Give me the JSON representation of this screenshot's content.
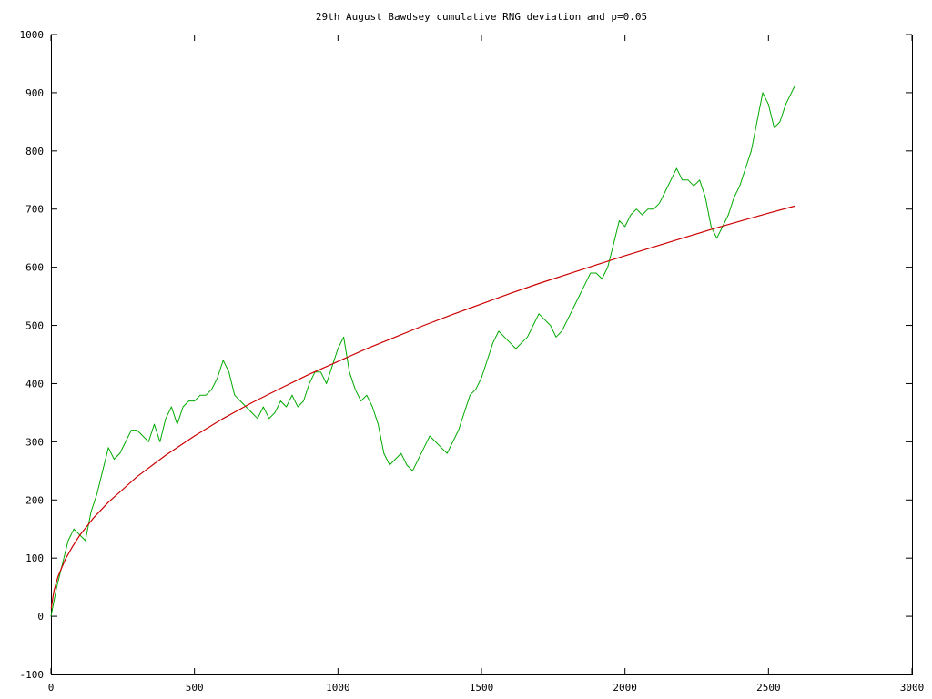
{
  "chart_data": {
    "type": "line",
    "title": "29th August Bawdsey cumulative RNG deviation and p=0.05",
    "xlabel": "",
    "ylabel": "",
    "xlim": [
      0,
      3000
    ],
    "ylim": [
      -100,
      1000
    ],
    "x_ticks": [
      0,
      500,
      1000,
      1500,
      2000,
      2500,
      3000
    ],
    "y_ticks": [
      -100,
      0,
      100,
      200,
      300,
      400,
      500,
      600,
      700,
      800,
      900,
      1000
    ],
    "x_tick_labels": [
      "0",
      "500",
      "1000",
      "1500",
      "2000",
      "2500",
      "3000"
    ],
    "y_tick_labels": [
      "-100",
      "0",
      "100",
      "200",
      "300",
      "400",
      "500",
      "600",
      "700",
      "800",
      "900",
      "1000"
    ],
    "grid": false,
    "legend": "none",
    "series": [
      {
        "color": "#00aa00",
        "points": [
          [
            0,
            0
          ],
          [
            20,
            50
          ],
          [
            40,
            90
          ],
          [
            60,
            130
          ],
          [
            80,
            150
          ],
          [
            100,
            140
          ],
          [
            120,
            130
          ],
          [
            140,
            180
          ],
          [
            160,
            210
          ],
          [
            180,
            250
          ],
          [
            200,
            290
          ],
          [
            220,
            270
          ],
          [
            240,
            280
          ],
          [
            260,
            300
          ],
          [
            280,
            320
          ],
          [
            300,
            320
          ],
          [
            320,
            310
          ],
          [
            340,
            300
          ],
          [
            360,
            330
          ],
          [
            380,
            300
          ],
          [
            400,
            340
          ],
          [
            420,
            360
          ],
          [
            440,
            330
          ],
          [
            460,
            360
          ],
          [
            480,
            370
          ],
          [
            500,
            370
          ],
          [
            520,
            380
          ],
          [
            540,
            380
          ],
          [
            560,
            390
          ],
          [
            580,
            410
          ],
          [
            600,
            440
          ],
          [
            620,
            420
          ],
          [
            640,
            380
          ],
          [
            660,
            370
          ],
          [
            680,
            360
          ],
          [
            700,
            350
          ],
          [
            720,
            340
          ],
          [
            740,
            360
          ],
          [
            760,
            340
          ],
          [
            780,
            350
          ],
          [
            800,
            370
          ],
          [
            820,
            360
          ],
          [
            840,
            380
          ],
          [
            860,
            360
          ],
          [
            880,
            370
          ],
          [
            900,
            400
          ],
          [
            920,
            420
          ],
          [
            940,
            420
          ],
          [
            960,
            400
          ],
          [
            980,
            430
          ],
          [
            1000,
            460
          ],
          [
            1020,
            480
          ],
          [
            1040,
            420
          ],
          [
            1060,
            390
          ],
          [
            1080,
            370
          ],
          [
            1100,
            380
          ],
          [
            1120,
            360
          ],
          [
            1140,
            330
          ],
          [
            1160,
            280
          ],
          [
            1180,
            260
          ],
          [
            1200,
            270
          ],
          [
            1220,
            280
          ],
          [
            1240,
            260
          ],
          [
            1260,
            250
          ],
          [
            1280,
            270
          ],
          [
            1300,
            290
          ],
          [
            1320,
            310
          ],
          [
            1340,
            300
          ],
          [
            1360,
            290
          ],
          [
            1380,
            280
          ],
          [
            1400,
            300
          ],
          [
            1420,
            320
          ],
          [
            1440,
            350
          ],
          [
            1460,
            380
          ],
          [
            1480,
            390
          ],
          [
            1500,
            410
          ],
          [
            1520,
            440
          ],
          [
            1540,
            470
          ],
          [
            1560,
            490
          ],
          [
            1580,
            480
          ],
          [
            1600,
            470
          ],
          [
            1620,
            460
          ],
          [
            1640,
            470
          ],
          [
            1660,
            480
          ],
          [
            1680,
            500
          ],
          [
            1700,
            520
          ],
          [
            1720,
            510
          ],
          [
            1740,
            500
          ],
          [
            1760,
            480
          ],
          [
            1780,
            490
          ],
          [
            1800,
            510
          ],
          [
            1820,
            530
          ],
          [
            1840,
            550
          ],
          [
            1860,
            570
          ],
          [
            1880,
            590
          ],
          [
            1900,
            590
          ],
          [
            1920,
            580
          ],
          [
            1940,
            600
          ],
          [
            1960,
            640
          ],
          [
            1980,
            680
          ],
          [
            2000,
            670
          ],
          [
            2020,
            690
          ],
          [
            2040,
            700
          ],
          [
            2060,
            690
          ],
          [
            2080,
            700
          ],
          [
            2100,
            700
          ],
          [
            2120,
            710
          ],
          [
            2140,
            730
          ],
          [
            2160,
            750
          ],
          [
            2180,
            770
          ],
          [
            2200,
            750
          ],
          [
            2220,
            750
          ],
          [
            2240,
            740
          ],
          [
            2260,
            750
          ],
          [
            2280,
            720
          ],
          [
            2300,
            670
          ],
          [
            2320,
            650
          ],
          [
            2340,
            670
          ],
          [
            2360,
            690
          ],
          [
            2380,
            720
          ],
          [
            2400,
            740
          ],
          [
            2420,
            770
          ],
          [
            2440,
            800
          ],
          [
            2460,
            850
          ],
          [
            2480,
            900
          ],
          [
            2500,
            880
          ],
          [
            2520,
            840
          ],
          [
            2540,
            850
          ],
          [
            2560,
            880
          ],
          [
            2580,
            900
          ],
          [
            2590,
            910
          ]
        ]
      },
      {
        "color": "#cc0000",
        "points": [
          [
            1,
            14
          ],
          [
            10,
            43
          ],
          [
            25,
            69
          ],
          [
            50,
            98
          ],
          [
            75,
            120
          ],
          [
            100,
            139
          ],
          [
            150,
            170
          ],
          [
            200,
            196
          ],
          [
            300,
            240
          ],
          [
            400,
            277
          ],
          [
            500,
            310
          ],
          [
            600,
            340
          ],
          [
            700,
            367
          ],
          [
            800,
            392
          ],
          [
            900,
            416
          ],
          [
            1000,
            438
          ],
          [
            1100,
            460
          ],
          [
            1200,
            480
          ],
          [
            1300,
            500
          ],
          [
            1400,
            519
          ],
          [
            1500,
            537
          ],
          [
            1600,
            555
          ],
          [
            1700,
            572
          ],
          [
            1800,
            588
          ],
          [
            1900,
            604
          ],
          [
            2000,
            620
          ],
          [
            2100,
            635
          ],
          [
            2200,
            650
          ],
          [
            2300,
            665
          ],
          [
            2400,
            679
          ],
          [
            2500,
            693
          ],
          [
            2590,
            705
          ]
        ]
      }
    ]
  }
}
